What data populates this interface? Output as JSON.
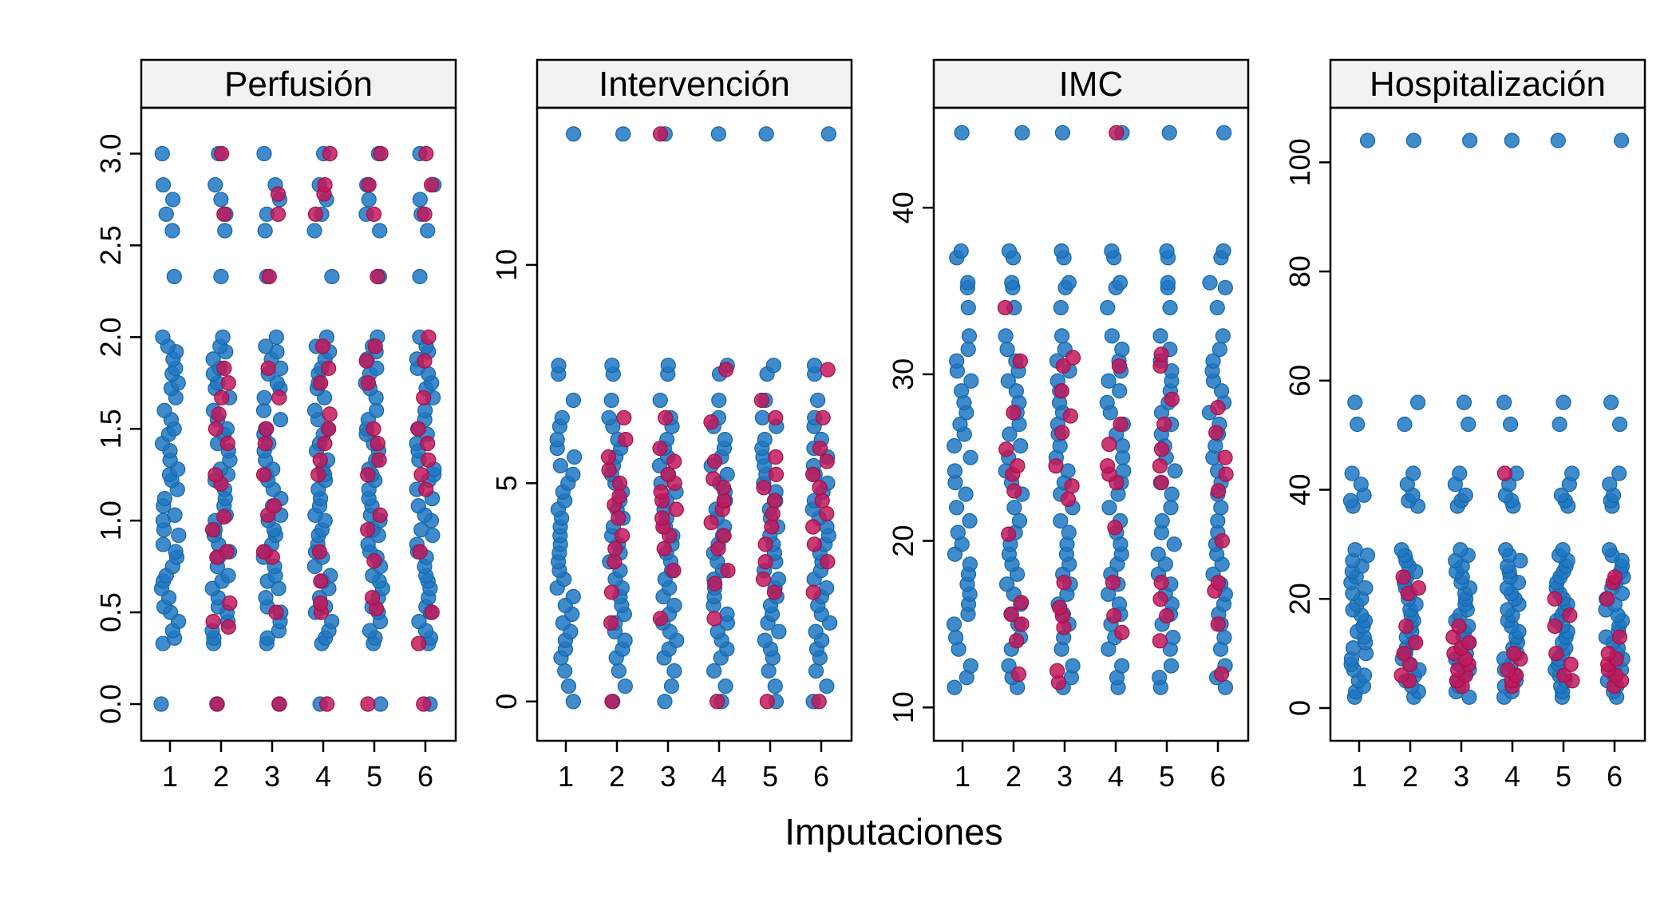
{
  "figure": {
    "xlabel": "Imputaciones",
    "colors": {
      "observed": "#1F77C2",
      "imputed": "#C2185B",
      "strip": "#F2F2F2",
      "frame": "#000000"
    }
  },
  "chart_data": [
    {
      "type": "scatter",
      "title": "Perfusión",
      "xlabel": "Imputaciones",
      "ylabel": "",
      "categories": [
        "1",
        "2",
        "3",
        "4",
        "5",
        "6"
      ],
      "ylim": [
        -0.2,
        3.25
      ],
      "yticks": [
        0.0,
        0.5,
        1.0,
        1.5,
        2.0,
        2.5,
        3.0
      ],
      "ytick_labels": [
        "0.0",
        "0.5",
        "1.0",
        "1.5",
        "2.0",
        "2.5",
        "3.0"
      ],
      "observed_values": [
        0,
        0.33,
        0.36,
        0.4,
        0.45,
        0.5,
        0.53,
        0.58,
        0.63,
        0.67,
        0.7,
        0.75,
        0.8,
        0.83,
        0.87,
        0.92,
        0.95,
        1.0,
        1.03,
        1.08,
        1.12,
        1.17,
        1.22,
        1.25,
        1.28,
        1.33,
        1.38,
        1.42,
        1.47,
        1.5,
        1.55,
        1.6,
        1.67,
        1.72,
        1.75,
        1.8,
        1.83,
        1.88,
        1.92,
        1.95,
        2.0,
        2.33,
        2.58,
        2.67,
        2.75,
        2.83,
        3.0
      ],
      "imputed": [
        [],
        [
          0,
          0.42,
          0.45,
          0.55,
          0.8,
          0.83,
          0.95,
          1.02,
          1.2,
          1.25,
          1.42,
          1.5,
          1.58,
          1.67,
          1.75,
          1.83,
          2.67,
          3.0
        ],
        [
          0,
          0.5,
          0.8,
          0.83,
          1.03,
          1.08,
          1.25,
          1.42,
          1.5,
          1.67,
          1.83,
          2.33,
          2.67,
          2.78
        ],
        [
          0,
          0.5,
          0.55,
          0.67,
          0.83,
          1.25,
          1.33,
          1.42,
          1.5,
          1.58,
          1.75,
          1.83,
          1.95,
          2.67,
          2.78,
          2.83,
          3.0
        ],
        [
          0,
          0.52,
          0.58,
          0.78,
          0.95,
          1.03,
          1.25,
          1.33,
          1.42,
          1.5,
          1.75,
          1.87,
          1.95,
          2.33,
          2.67,
          2.83,
          3.0
        ],
        [
          0,
          0.33,
          0.5,
          0.83,
          1.17,
          1.25,
          1.33,
          1.42,
          1.5,
          1.67,
          1.87,
          2.0,
          2.67,
          2.83,
          3.0
        ]
      ]
    },
    {
      "type": "scatter",
      "title": "Intervención",
      "xlabel": "Imputaciones",
      "ylabel": "",
      "categories": [
        "1",
        "2",
        "3",
        "4",
        "5",
        "6"
      ],
      "ylim": [
        -0.9,
        13.6
      ],
      "yticks": [
        0,
        5,
        10
      ],
      "ytick_labels": [
        "0",
        "5",
        "10"
      ],
      "observed_values": [
        0,
        0.35,
        0.7,
        1.0,
        1.2,
        1.4,
        1.6,
        1.8,
        2.0,
        2.2,
        2.4,
        2.6,
        2.8,
        3.0,
        3.2,
        3.4,
        3.6,
        3.8,
        4.0,
        4.2,
        4.4,
        4.6,
        4.8,
        5.0,
        5.2,
        5.4,
        5.6,
        5.8,
        6.0,
        6.3,
        6.5,
        6.9,
        7.5,
        7.7,
        13.0
      ],
      "imputed": [
        [],
        [
          0,
          1.8,
          2.5,
          3.2,
          3.5,
          3.8,
          4.2,
          4.5,
          4.7,
          5.0,
          5.3,
          5.6,
          6.0,
          6.5
        ],
        [
          1.9,
          3.0,
          3.5,
          3.8,
          4.0,
          4.2,
          4.4,
          4.6,
          4.8,
          5.0,
          5.2,
          5.5,
          5.8,
          6.5,
          13.0
        ],
        [
          0,
          1.9,
          2.7,
          3.0,
          3.5,
          3.8,
          4.1,
          4.4,
          4.6,
          4.9,
          5.1,
          5.5,
          6.4,
          7.6
        ],
        [
          0,
          2.5,
          2.8,
          3.2,
          3.6,
          4.0,
          4.3,
          4.6,
          4.9,
          5.2,
          5.6,
          6.5,
          6.9
        ],
        [
          0,
          2.5,
          3.2,
          3.6,
          4.0,
          4.3,
          4.6,
          4.9,
          5.2,
          5.5,
          5.8,
          6.5,
          7.6
        ]
      ]
    },
    {
      "type": "scatter",
      "title": "IMC",
      "xlabel": "Imputaciones",
      "ylabel": "",
      "categories": [
        "1",
        "2",
        "3",
        "4",
        "5",
        "6"
      ],
      "ylim": [
        8.0,
        46.0
      ],
      "yticks": [
        10,
        20,
        30,
        40
      ],
      "ytick_labels": [
        "10",
        "20",
        "30",
        "40"
      ],
      "observed_values": [
        11.2,
        11.8,
        12.5,
        13.5,
        14.2,
        15.0,
        15.6,
        16.2,
        16.8,
        17.4,
        18.0,
        18.6,
        19.2,
        19.8,
        20.5,
        21.2,
        22.0,
        22.8,
        23.5,
        24.2,
        25.0,
        25.7,
        26.4,
        27.0,
        27.7,
        28.3,
        29.0,
        29.6,
        30.2,
        30.8,
        31.5,
        32.3,
        34.0,
        35.2,
        35.5,
        37.0,
        37.4,
        44.5
      ],
      "imputed": [
        [],
        [
          12.0,
          14.0,
          15.0,
          15.6,
          16.3,
          20.4,
          23.0,
          24.0,
          24.5,
          25.5,
          27.7,
          30.8,
          34.0
        ],
        [
          11.5,
          12.2,
          14.8,
          15.5,
          16.0,
          17.5,
          22.5,
          23.3,
          24.5,
          26.5,
          27.5,
          29.0,
          30.5,
          31.0
        ],
        [
          14.5,
          15.5,
          17.5,
          20.8,
          23.5,
          24.0,
          24.5,
          25.8,
          27.0,
          30.5,
          44.5
        ],
        [
          14.0,
          15.5,
          16.5,
          17.5,
          23.5,
          24.5,
          25.5,
          27.0,
          28.5,
          30.5,
          31.2
        ],
        [
          12.0,
          15.0,
          17.0,
          17.5,
          20.0,
          23.0,
          24.0,
          25.0,
          26.5,
          28.0
        ]
      ]
    },
    {
      "type": "scatter",
      "title": "Hospitalización",
      "xlabel": "Imputaciones",
      "ylabel": "",
      "categories": [
        "1",
        "2",
        "3",
        "4",
        "5",
        "6"
      ],
      "ylim": [
        -6.0,
        110.0
      ],
      "yticks": [
        0,
        20,
        40,
        60,
        80,
        100
      ],
      "ytick_labels": [
        "0",
        "20",
        "40",
        "60",
        "80",
        "100"
      ],
      "observed_values": [
        2,
        3,
        4,
        5,
        6,
        7,
        8,
        9,
        10,
        11,
        12,
        13,
        14,
        15,
        16,
        17,
        18,
        19,
        20,
        21,
        22,
        23,
        24,
        25,
        26,
        27,
        28,
        29,
        37,
        38,
        39,
        41,
        43,
        52,
        56,
        104
      ],
      "imputed": [
        [],
        [
          5,
          6,
          8,
          10,
          12,
          15,
          21,
          22,
          24
        ],
        [
          4,
          5,
          6,
          7,
          8,
          9,
          10,
          11,
          12,
          13,
          15
        ],
        [
          4,
          5,
          6,
          7,
          9,
          10,
          43
        ],
        [
          5,
          6,
          8,
          10,
          15,
          17,
          20
        ],
        [
          4,
          5,
          6,
          7,
          8,
          9,
          10,
          13,
          20,
          23,
          24
        ]
      ]
    }
  ]
}
